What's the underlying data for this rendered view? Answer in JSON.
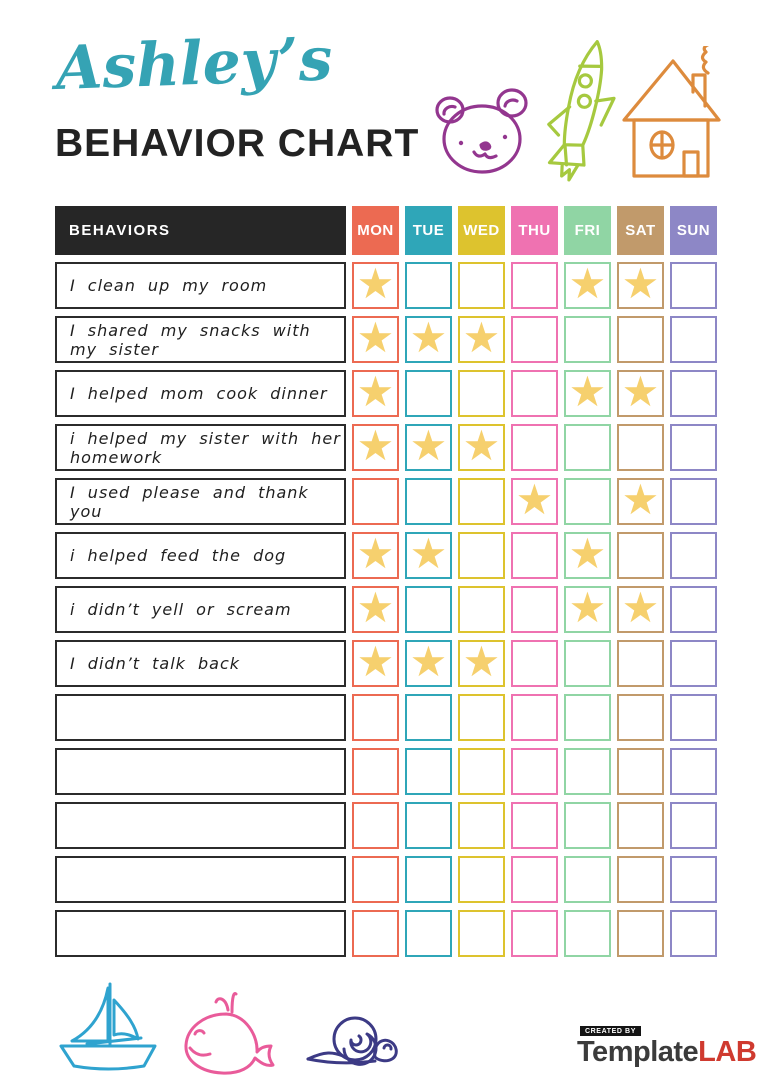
{
  "header": {
    "name": "Ashley’s",
    "title": "BEHAVIOR CHART"
  },
  "palette": {
    "title_script": "#35a3b4",
    "title_main": "#232323",
    "header_bg": "#262626",
    "star": "#f6d06e",
    "row_border": "#2b2b2b",
    "logo_dark": "#3b3b3b",
    "logo_red": "#cf3a2f"
  },
  "doodles": {
    "bear": "#93368f",
    "rocket": "#a6c93f",
    "house": "#dd8b3d",
    "sailboat": "#2fa3cf",
    "whale": "#e95b9a",
    "snail": "#3c3a85"
  },
  "icons": {
    "star": "★"
  },
  "table": {
    "behaviors_header": "BEHAVIORS",
    "days": [
      {
        "label": "MON",
        "color": "#ec6a52"
      },
      {
        "label": "TUE",
        "color": "#2fa6b8"
      },
      {
        "label": "WED",
        "color": "#ddc32e"
      },
      {
        "label": "THU",
        "color": "#ef72b1"
      },
      {
        "label": "FRI",
        "color": "#90d5a4"
      },
      {
        "label": "SAT",
        "color": "#c19a6b"
      },
      {
        "label": "SUN",
        "color": "#8d87c6"
      }
    ],
    "rows": [
      {
        "label": "I clean up my room",
        "stars": [
          1,
          0,
          0,
          0,
          1,
          1,
          0
        ]
      },
      {
        "label": "I shared my snacks with my sister",
        "stars": [
          1,
          1,
          1,
          0,
          0,
          0,
          0
        ]
      },
      {
        "label": "I helped mom cook dinner",
        "stars": [
          1,
          0,
          0,
          0,
          1,
          1,
          0
        ]
      },
      {
        "label": "i helped my sister with her homework",
        "stars": [
          1,
          1,
          1,
          0,
          0,
          0,
          0
        ]
      },
      {
        "label": "I used please and thank you",
        "stars": [
          0,
          0,
          0,
          1,
          0,
          1,
          0
        ]
      },
      {
        "label": "i helped feed the dog",
        "stars": [
          1,
          1,
          0,
          0,
          1,
          0,
          0
        ]
      },
      {
        "label": "i didn’t yell or scream",
        "stars": [
          1,
          0,
          0,
          0,
          1,
          1,
          0
        ]
      },
      {
        "label": "I didn’t talk back",
        "stars": [
          1,
          1,
          1,
          0,
          0,
          0,
          0
        ]
      },
      {
        "label": "",
        "stars": [
          0,
          0,
          0,
          0,
          0,
          0,
          0
        ]
      },
      {
        "label": "",
        "stars": [
          0,
          0,
          0,
          0,
          0,
          0,
          0
        ]
      },
      {
        "label": "",
        "stars": [
          0,
          0,
          0,
          0,
          0,
          0,
          0
        ]
      },
      {
        "label": "",
        "stars": [
          0,
          0,
          0,
          0,
          0,
          0,
          0
        ]
      },
      {
        "label": "",
        "stars": [
          0,
          0,
          0,
          0,
          0,
          0,
          0
        ]
      }
    ]
  },
  "footer": {
    "logo": {
      "created_by": "CREATED BY",
      "brand_dark": "Template",
      "brand_red": "LAB"
    }
  }
}
